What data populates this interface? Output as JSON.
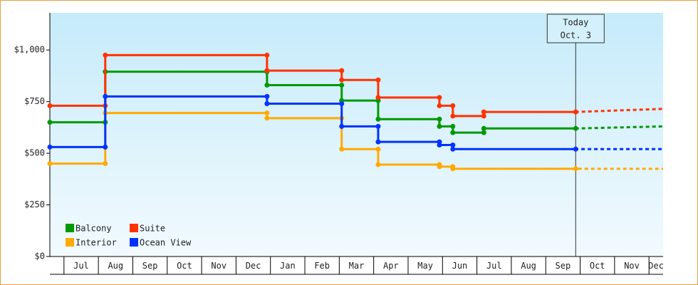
{
  "chart_data": {
    "type": "line",
    "step": true,
    "ylim": [
      0,
      1180
    ],
    "yticks": [
      {
        "value": 0,
        "label": "$0"
      },
      {
        "value": 250,
        "label": "$250"
      },
      {
        "value": 500,
        "label": "$500"
      },
      {
        "value": 750,
        "label": "$750"
      },
      {
        "value": 1000,
        "label": "$1,000"
      }
    ],
    "xlim": [
      -0.41,
      17.41
    ],
    "xticks": [
      {
        "value": 0.5,
        "label": "Jul"
      },
      {
        "value": 1.5,
        "label": "Aug"
      },
      {
        "value": 2.5,
        "label": "Sep"
      },
      {
        "value": 3.5,
        "label": "Oct"
      },
      {
        "value": 4.5,
        "label": "Nov"
      },
      {
        "value": 5.5,
        "label": "Dec"
      },
      {
        "value": 6.5,
        "label": "Jan"
      },
      {
        "value": 7.5,
        "label": "Feb"
      },
      {
        "value": 8.5,
        "label": "Mar"
      },
      {
        "value": 9.5,
        "label": "Apr"
      },
      {
        "value": 10.5,
        "label": "May"
      },
      {
        "value": 11.5,
        "label": "Jun"
      },
      {
        "value": 12.5,
        "label": "Jul"
      },
      {
        "value": 13.5,
        "label": "Aug"
      },
      {
        "value": 14.5,
        "label": "Sep"
      },
      {
        "value": 15.5,
        "label": "Oct"
      },
      {
        "value": 16.5,
        "label": "Nov"
      },
      {
        "value": 17.5,
        "label": "Dec"
      }
    ],
    "today": {
      "x": 14.87,
      "label": "Today",
      "date": "Oct. 3"
    },
    "legend": "lower-left",
    "series": [
      {
        "name": "Balcony",
        "color": "#009900",
        "x": [
          -0.41,
          1.2,
          1.2,
          5.9,
          5.9,
          8.07,
          8.07,
          9.13,
          9.13,
          10.91,
          10.91,
          11.3,
          11.3,
          12.2,
          12.2,
          14.87,
          17.41
        ],
        "values": [
          650,
          650,
          895,
          895,
          830,
          830,
          755,
          755,
          665,
          665,
          630,
          630,
          600,
          600,
          620,
          620,
          630
        ]
      },
      {
        "name": "Suite",
        "color": "#ff3300",
        "x": [
          -0.41,
          1.2,
          1.2,
          5.9,
          5.9,
          8.07,
          8.07,
          9.13,
          9.13,
          10.91,
          10.91,
          11.3,
          11.3,
          12.2,
          12.2,
          14.87,
          17.41
        ],
        "values": [
          730,
          730,
          975,
          975,
          900,
          900,
          855,
          855,
          770,
          770,
          730,
          730,
          680,
          680,
          700,
          700,
          715
        ]
      },
      {
        "name": "Interior",
        "color": "#ffaa00",
        "x": [
          -0.41,
          1.2,
          1.2,
          5.9,
          5.9,
          8.07,
          8.07,
          9.13,
          9.13,
          10.91,
          10.91,
          11.3,
          11.3,
          14.87,
          17.41
        ],
        "values": [
          450,
          450,
          695,
          695,
          670,
          670,
          520,
          520,
          445,
          445,
          435,
          435,
          425,
          425,
          425
        ]
      },
      {
        "name": "Ocean View",
        "color": "#0033ff",
        "x": [
          -0.41,
          1.2,
          1.2,
          5.9,
          5.9,
          8.07,
          8.07,
          9.13,
          9.13,
          10.91,
          10.91,
          11.3,
          11.3,
          14.87,
          17.41
        ],
        "values": [
          530,
          530,
          775,
          775,
          740,
          740,
          630,
          630,
          555,
          555,
          540,
          540,
          520,
          520,
          520
        ]
      }
    ]
  }
}
